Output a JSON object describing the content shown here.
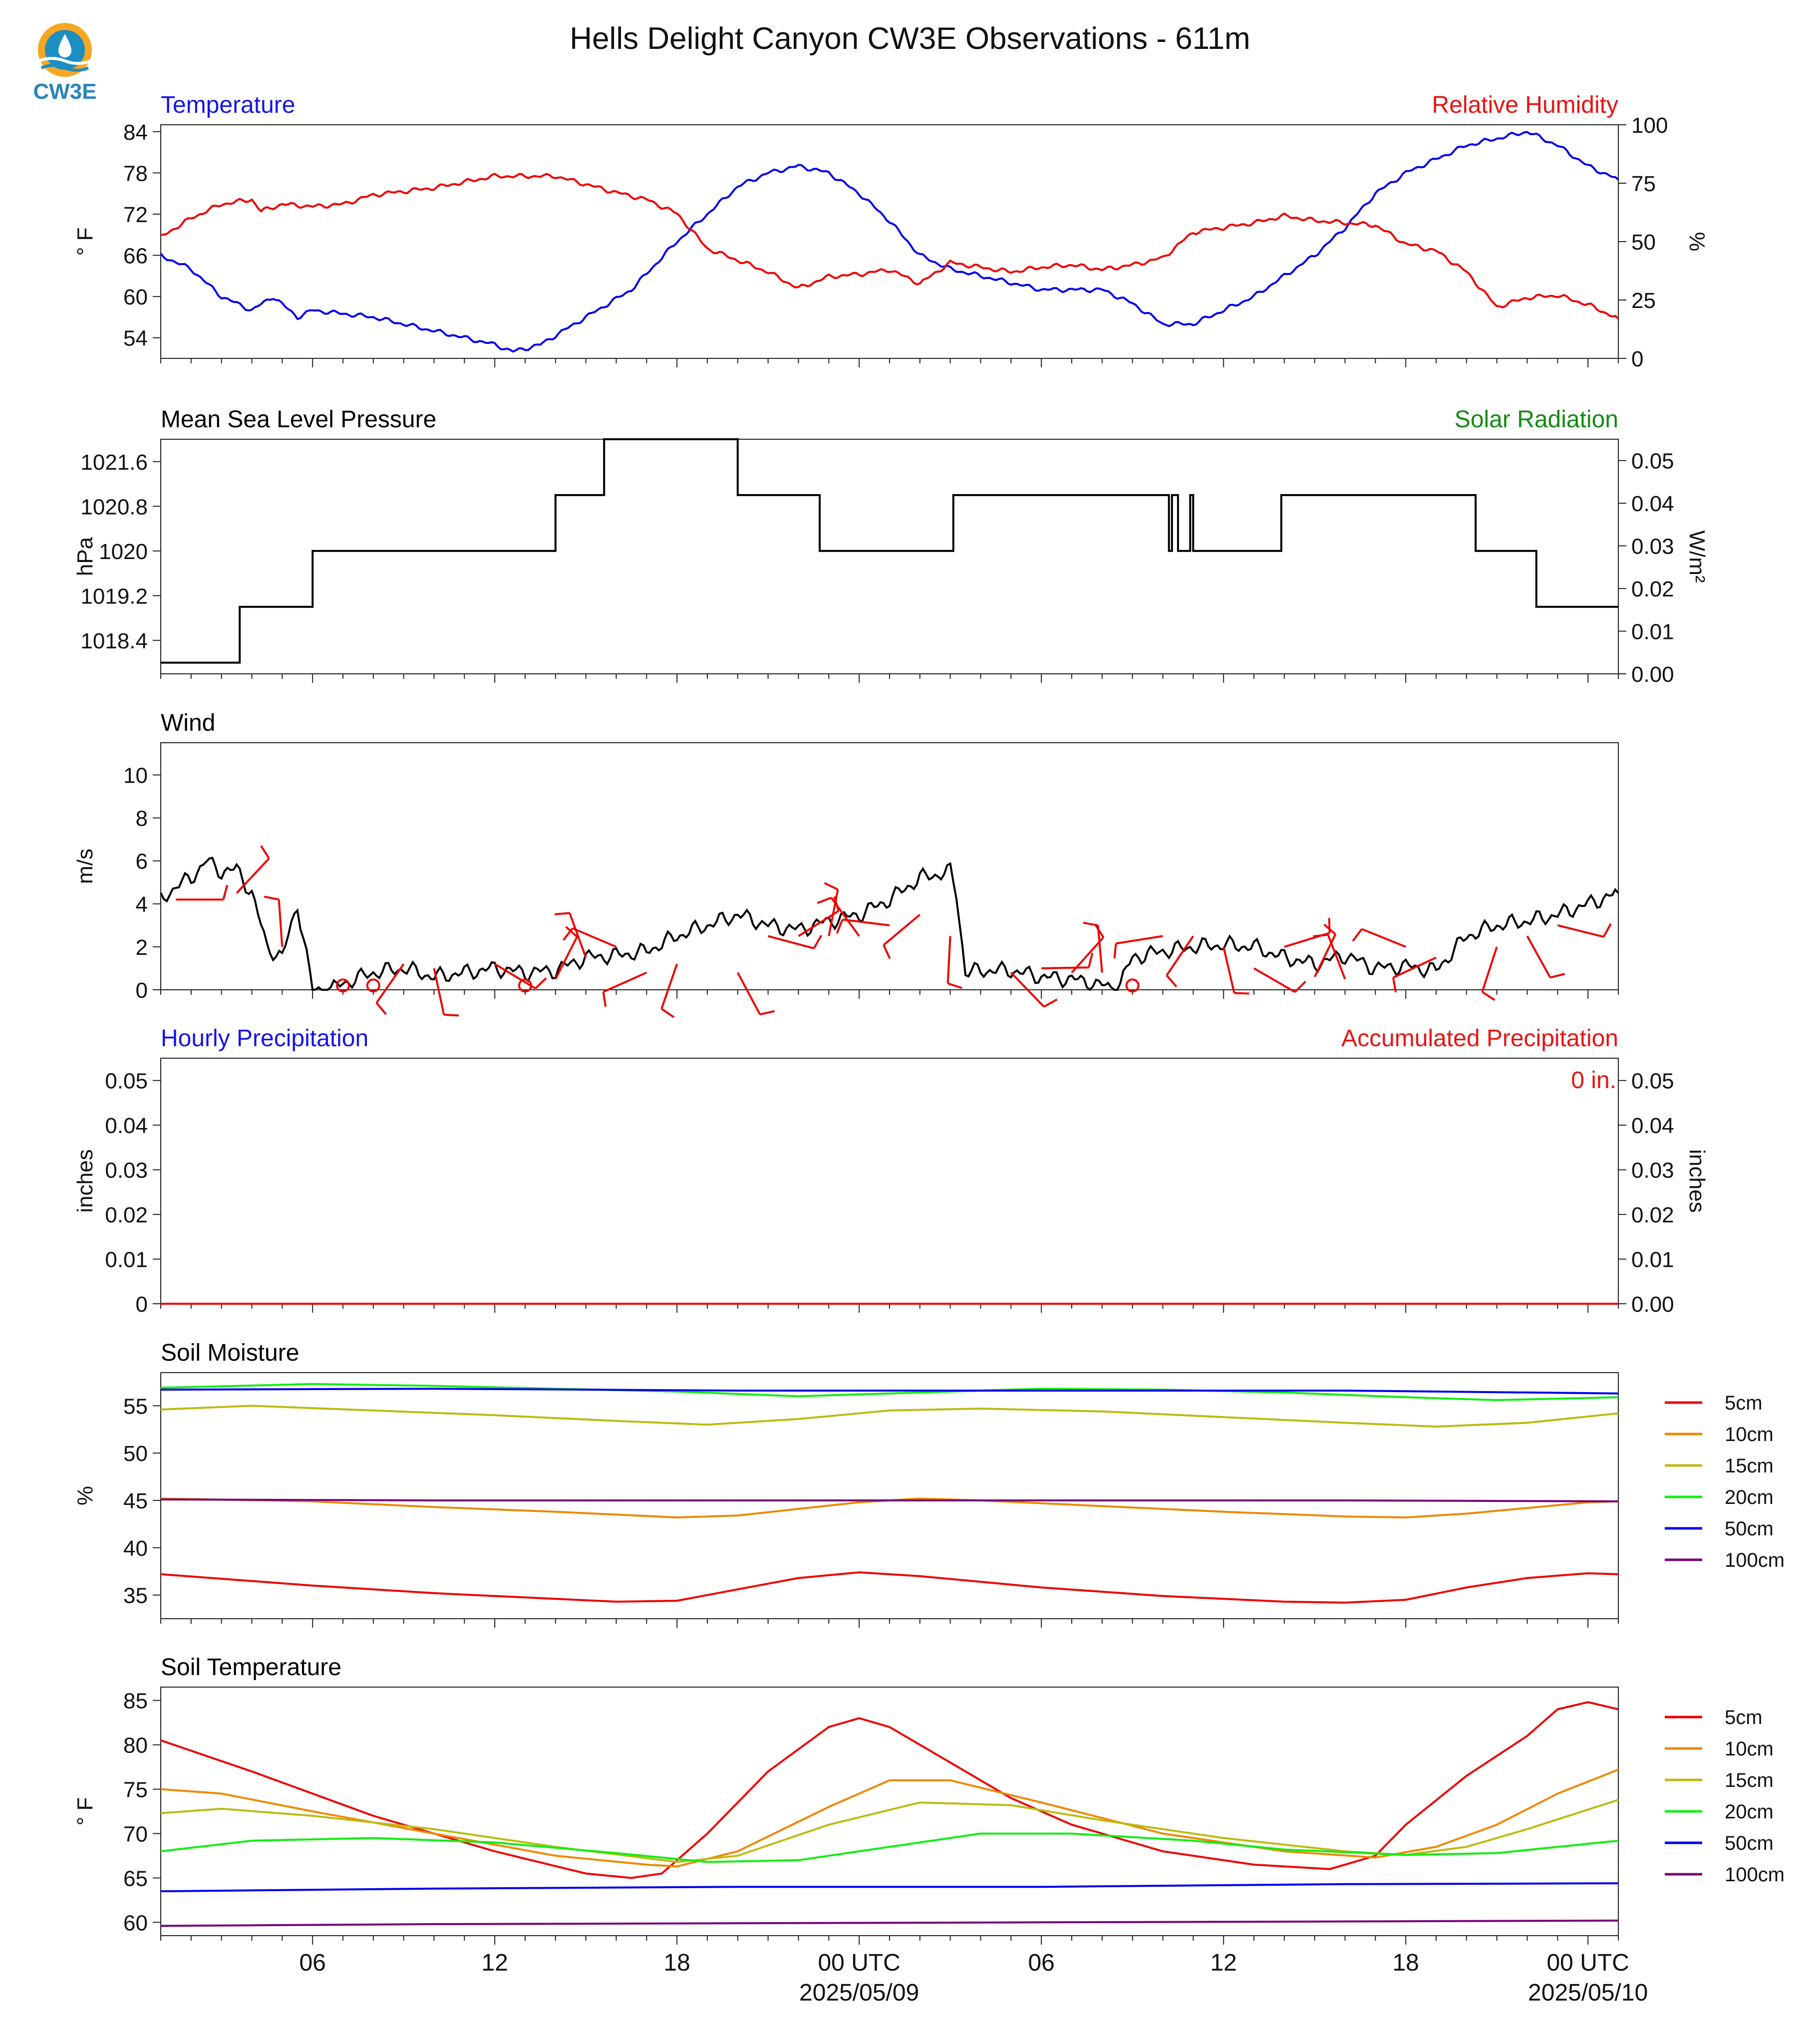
{
  "title": "Hells Delight Canyon CW3E Observations - 611m",
  "logo": {
    "text": "CW3E",
    "icon": "cw3e-logo-icon",
    "colors": {
      "sun": "#f5a623",
      "water": "#1b8ec2",
      "text": "#2b86b5"
    }
  },
  "time_axis": {
    "tick_labels": [
      "06",
      "12",
      "18",
      "00 UTC",
      "06",
      "12",
      "18",
      "00 UTC"
    ],
    "date_labels": [
      "2025/05/09",
      "2025/05/10"
    ],
    "tick_hours": [
      6,
      12,
      18,
      24,
      30,
      36,
      42,
      48
    ],
    "start_hour": 1,
    "end_hour": 49
  },
  "chart_data": [
    {
      "type": "line",
      "left_title": "Temperature",
      "right_title": "Relative Humidity",
      "left_title_color": "#1414e6",
      "right_title_color": "#e61414",
      "ylabel": "° F",
      "ylabel_right": "%",
      "ylim": [
        51,
        85
      ],
      "ylim_right": [
        0,
        100
      ],
      "yticks": [
        54,
        60,
        66,
        72,
        78,
        84
      ],
      "yticks_right": [
        0,
        25,
        50,
        75,
        100
      ],
      "series": [
        {
          "name": "Temperature",
          "axis": "left",
          "color": "#0000ee",
          "x": [
            1,
            2,
            3,
            4,
            4.7,
            5.5,
            6,
            8,
            10,
            11,
            12,
            12.6,
            13.5,
            15,
            16.5,
            18,
            19,
            20,
            21,
            22,
            23,
            24,
            25,
            26,
            27,
            28,
            29,
            30,
            31,
            32,
            33,
            34,
            35,
            36,
            37,
            38,
            39,
            40,
            41,
            42,
            43,
            44,
            45,
            46,
            47,
            48,
            49
          ],
          "y": [
            66,
            64,
            60,
            58,
            60,
            57,
            58,
            57,
            55,
            54,
            53,
            52,
            53,
            57,
            61,
            68,
            72,
            76,
            78,
            79,
            78,
            75,
            71,
            66,
            64,
            63,
            62,
            61,
            61,
            61,
            59,
            56,
            56,
            58,
            60,
            63,
            66,
            70,
            75,
            78,
            80,
            82,
            83,
            84,
            82,
            79,
            77
          ]
        },
        {
          "name": "Relative Humidity",
          "axis": "right",
          "color": "#ee0000",
          "x": [
            1,
            2,
            3,
            3.5,
            4,
            4.3,
            5,
            6,
            7,
            8,
            10,
            12,
            14,
            16,
            17,
            18,
            19,
            20,
            21,
            22,
            23,
            24,
            25,
            26,
            27,
            28,
            29,
            30,
            31,
            32,
            33,
            34,
            35,
            36,
            37,
            38,
            39,
            40,
            41,
            42,
            43,
            44,
            45,
            46,
            47,
            48,
            49
          ],
          "y": [
            52,
            60,
            66,
            67,
            68,
            63,
            66,
            65,
            66,
            70,
            73,
            78,
            78,
            71,
            68,
            62,
            47,
            42,
            37,
            30,
            35,
            36,
            38,
            32,
            41,
            39,
            37,
            39,
            40,
            38,
            40,
            43,
            54,
            56,
            58,
            61,
            59,
            58,
            57,
            49,
            46,
            37,
            22,
            26,
            27,
            23,
            17
          ]
        }
      ]
    },
    {
      "type": "line",
      "left_title": "Mean Sea Level Pressure",
      "right_title": "Solar Radiation",
      "left_title_color": "#000000",
      "right_title_color": "#138a13",
      "ylabel": "hPa",
      "ylabel_right": "W/m²",
      "ylim": [
        1017.8,
        1022.0
      ],
      "ylim_right": [
        0,
        0.055
      ],
      "yticks": [
        1018.4,
        1019.2,
        1020.0,
        1020.8,
        1021.6
      ],
      "yticks_right": [
        0.0,
        0.01,
        0.02,
        0.03,
        0.04,
        0.05
      ],
      "series": [
        {
          "name": "Mean Sea Level Pressure",
          "axis": "left",
          "color": "#000000",
          "step": true,
          "x": [
            1,
            3.6,
            3.6,
            6,
            6,
            14,
            14,
            15.6,
            15.6,
            20,
            20,
            22.7,
            22.7,
            27.1,
            27.1,
            34.2,
            34.2,
            34.3,
            34.3,
            34.5,
            34.5,
            34.6,
            34.6,
            34.9,
            34.9,
            35.0,
            35.0,
            37.9,
            37.9,
            44.3,
            44.3,
            46.3,
            46.3,
            49
          ],
          "y": [
            1018.0,
            1018.0,
            1019.0,
            1019.0,
            1020.0,
            1020.0,
            1021.0,
            1021.0,
            1022.0,
            1022.0,
            1021.0,
            1021.0,
            1020.0,
            1020.0,
            1021.0,
            1021.0,
            1020.0,
            1020.0,
            1021.0,
            1021.0,
            1020.0,
            1020.0,
            1020.0,
            1020.0,
            1021.0,
            1021.0,
            1020.0,
            1020.0,
            1021.0,
            1021.0,
            1020.0,
            1020.0,
            1019.0,
            1019.0
          ]
        }
      ]
    },
    {
      "type": "line",
      "left_title": "Wind",
      "right_title": "",
      "left_title_color": "#000000",
      "ylabel": "m/s",
      "ylim": [
        0,
        11.5
      ],
      "yticks": [
        0,
        2,
        4,
        6,
        8,
        10
      ],
      "series": [
        {
          "name": "Wind Speed",
          "axis": "left",
          "color": "#000000",
          "x": [
            1,
            1.5,
            2,
            2.5,
            3,
            3.5,
            4,
            4.5,
            5,
            5.5,
            6,
            6.6,
            7,
            8,
            9,
            10,
            11,
            12,
            13,
            14,
            15,
            16,
            17,
            18,
            19,
            20,
            21,
            22,
            23,
            24,
            25,
            26,
            27,
            27.2,
            27.5,
            28,
            29,
            30,
            31,
            32,
            32.5,
            33,
            34,
            35,
            36,
            37,
            38,
            39,
            40,
            41,
            42,
            43,
            44,
            45,
            46,
            47,
            48,
            49
          ],
          "y": [
            4.2,
            4.8,
            5.2,
            6.0,
            5.5,
            5.6,
            4.5,
            2.0,
            1.5,
            4.0,
            0.0,
            0.0,
            0.3,
            0.8,
            1.0,
            0.6,
            0.8,
            1.0,
            0.8,
            0.9,
            1.5,
            1.6,
            1.8,
            2.5,
            3.0,
            3.5,
            3.0,
            2.8,
            3.2,
            3.5,
            4.2,
            5.2,
            5.5,
            4.5,
            0.8,
            0.9,
            0.9,
            0.6,
            0.5,
            0.2,
            0.0,
            1.5,
            1.8,
            2.0,
            2.1,
            2.0,
            1.5,
            1.2,
            1.6,
            1.0,
            1.1,
            0.9,
            2.5,
            3.0,
            3.2,
            3.5,
            4.0,
            4.5
          ]
        },
        {
          "name": "Wind Barbs",
          "axis": "left",
          "color": "#ee0000",
          "marker": "barb",
          "x": [
            1.5,
            3.5,
            5,
            7,
            8,
            9,
            10,
            12,
            13,
            14,
            15,
            16,
            17,
            18,
            20,
            21,
            22,
            23,
            24,
            25,
            26,
            27,
            29,
            30,
            31,
            32,
            33,
            34,
            35,
            36,
            37,
            38,
            39,
            40,
            42,
            43,
            45,
            46,
            47
          ],
          "y": [
            4.2,
            4.5,
            2.0,
            0.2,
            0.2,
            1.2,
            1.0,
            1.2,
            0.2,
            0.5,
            1.5,
            2.0,
            0.8,
            1.2,
            0.8,
            2.5,
            2.5,
            2.5,
            2.5,
            3.0,
            3.5,
            2.5,
            0.8,
            1.0,
            0.8,
            0.8,
            0.2,
            2.5,
            2.5,
            2.0,
            1.0,
            2.0,
            0.6,
            0.5,
            2.0,
            1.5,
            2.0,
            2.5,
            3.0
          ]
        }
      ]
    },
    {
      "type": "line",
      "left_title": "Hourly Precipitation",
      "right_title": "Accumulated Precipitation",
      "left_title_color": "#1414e6",
      "right_title_color": "#e61414",
      "ylabel": "inches",
      "ylabel_right": "inches",
      "ylim": [
        0,
        0.055
      ],
      "ylim_right": [
        0,
        0.055
      ],
      "yticks": [
        0.0,
        0.01,
        0.02,
        0.03,
        0.04,
        0.05
      ],
      "yticks_right": [
        0.0,
        0.01,
        0.02,
        0.03,
        0.04,
        0.05
      ],
      "annotation": "0 in.",
      "series": [
        {
          "name": "Accumulated Precipitation",
          "axis": "right",
          "color": "#ee0000",
          "x": [
            1,
            49
          ],
          "y": [
            0,
            0
          ]
        }
      ]
    },
    {
      "type": "line",
      "left_title": "Soil Moisture",
      "right_title": "",
      "left_title_color": "#000000",
      "ylabel": "%",
      "ylim": [
        32.5,
        58.5
      ],
      "yticks": [
        35,
        40,
        45,
        50,
        55
      ],
      "legend": [
        "5cm",
        "10cm",
        "15cm",
        "20cm",
        "50cm",
        "100cm"
      ],
      "series": [
        {
          "name": "5cm",
          "color": "#ee0000",
          "x": [
            1,
            6,
            10,
            14,
            16,
            18,
            20,
            22,
            24,
            26,
            30,
            34,
            38,
            40,
            42,
            44,
            46,
            48,
            49
          ],
          "y": [
            37.2,
            36.0,
            35.2,
            34.6,
            34.3,
            34.4,
            35.6,
            36.8,
            37.4,
            37.0,
            35.8,
            34.9,
            34.3,
            34.2,
            34.5,
            35.8,
            36.8,
            37.3,
            37.2
          ]
        },
        {
          "name": "10cm",
          "color": "#ee8800",
          "x": [
            1,
            6,
            10,
            14,
            18,
            20,
            22,
            24,
            26,
            28,
            32,
            36,
            40,
            42,
            44,
            46,
            48,
            49
          ],
          "y": [
            45.2,
            44.9,
            44.3,
            43.8,
            43.2,
            43.4,
            44.1,
            44.8,
            45.2,
            45.0,
            44.4,
            43.8,
            43.3,
            43.2,
            43.6,
            44.2,
            44.8,
            44.9
          ]
        },
        {
          "name": "15cm",
          "color": "#bbbb11",
          "x": [
            1,
            4,
            8,
            12,
            16,
            19,
            22,
            25,
            28,
            32,
            36,
            40,
            43,
            46,
            49
          ],
          "y": [
            54.6,
            55.0,
            54.5,
            54.0,
            53.4,
            53.0,
            53.6,
            54.5,
            54.7,
            54.4,
            53.8,
            53.2,
            52.8,
            53.2,
            54.2
          ]
        },
        {
          "name": "20cm",
          "color": "#11ee11",
          "x": [
            1,
            6,
            10,
            14,
            18,
            22,
            26,
            30,
            34,
            38,
            42,
            45,
            49
          ],
          "y": [
            56.9,
            57.3,
            57.1,
            56.8,
            56.5,
            56.0,
            56.4,
            56.8,
            56.7,
            56.4,
            55.9,
            55.6,
            55.9
          ]
        },
        {
          "name": "50cm",
          "color": "#0000ee",
          "x": [
            1,
            10,
            20,
            30,
            40,
            49
          ],
          "y": [
            56.7,
            56.8,
            56.6,
            56.6,
            56.6,
            56.3
          ]
        },
        {
          "name": "100cm",
          "color": "#770077",
          "x": [
            1,
            10,
            20,
            30,
            40,
            49
          ],
          "y": [
            45.1,
            45.0,
            45.0,
            45.0,
            45.0,
            44.9
          ]
        }
      ]
    },
    {
      "type": "line",
      "left_title": "Soil Temperature",
      "right_title": "",
      "left_title_color": "#000000",
      "ylabel": "° F",
      "ylim": [
        58.5,
        86.5
      ],
      "yticks": [
        60,
        65,
        70,
        75,
        80,
        85
      ],
      "legend": [
        "5cm",
        "10cm",
        "15cm",
        "20cm",
        "50cm",
        "100cm"
      ],
      "series": [
        {
          "name": "5cm",
          "color": "#ee0000",
          "x": [
            1,
            4,
            8,
            12,
            15,
            16.5,
            17.5,
            19,
            21,
            23,
            24,
            25,
            27,
            29,
            31,
            34,
            37,
            39.5,
            41,
            42,
            44,
            46,
            47,
            48,
            49
          ],
          "y": [
            80.5,
            77.0,
            72.0,
            68.0,
            65.5,
            65.0,
            65.5,
            70.0,
            77.0,
            82.0,
            83.0,
            82.0,
            78.0,
            74.0,
            71.0,
            68.0,
            66.5,
            66.0,
            67.5,
            71.0,
            76.5,
            81.0,
            84.0,
            84.8,
            84.0
          ]
        },
        {
          "name": "10cm",
          "color": "#ee8800",
          "x": [
            1,
            3,
            6,
            10,
            14,
            17,
            18,
            20,
            23,
            25,
            27,
            30,
            34,
            38,
            41,
            43,
            45,
            47,
            49
          ],
          "y": [
            75.0,
            74.5,
            72.5,
            70.0,
            67.5,
            66.5,
            66.3,
            68.0,
            73.0,
            76.0,
            76.0,
            73.5,
            70.0,
            68.0,
            67.3,
            68.5,
            71.0,
            74.5,
            77.2
          ]
        },
        {
          "name": "15cm",
          "color": "#bbbb11",
          "x": [
            1,
            3,
            6,
            10,
            14,
            18,
            20,
            23,
            26,
            29,
            32,
            36,
            40,
            42,
            44,
            46,
            49
          ],
          "y": [
            72.3,
            72.8,
            72.0,
            70.5,
            68.5,
            66.8,
            67.5,
            71.0,
            73.5,
            73.2,
            71.5,
            69.5,
            68.0,
            67.6,
            68.5,
            70.5,
            73.8
          ]
        },
        {
          "name": "20cm",
          "color": "#11ee11",
          "x": [
            1,
            4,
            8,
            12,
            16,
            19,
            22,
            25,
            28,
            31,
            35,
            38,
            42,
            45,
            49
          ],
          "y": [
            68.0,
            69.2,
            69.5,
            69.0,
            67.8,
            66.8,
            67.0,
            68.5,
            70.0,
            70.0,
            69.2,
            68.2,
            67.6,
            67.8,
            69.2
          ]
        },
        {
          "name": "50cm",
          "color": "#0000ee",
          "x": [
            1,
            10,
            20,
            30,
            40,
            49
          ],
          "y": [
            63.5,
            63.8,
            64.0,
            64.0,
            64.3,
            64.4
          ]
        },
        {
          "name": "100cm",
          "color": "#770077",
          "x": [
            1,
            10,
            20,
            30,
            40,
            49
          ],
          "y": [
            59.6,
            59.8,
            59.9,
            60.0,
            60.1,
            60.2
          ]
        }
      ]
    }
  ]
}
